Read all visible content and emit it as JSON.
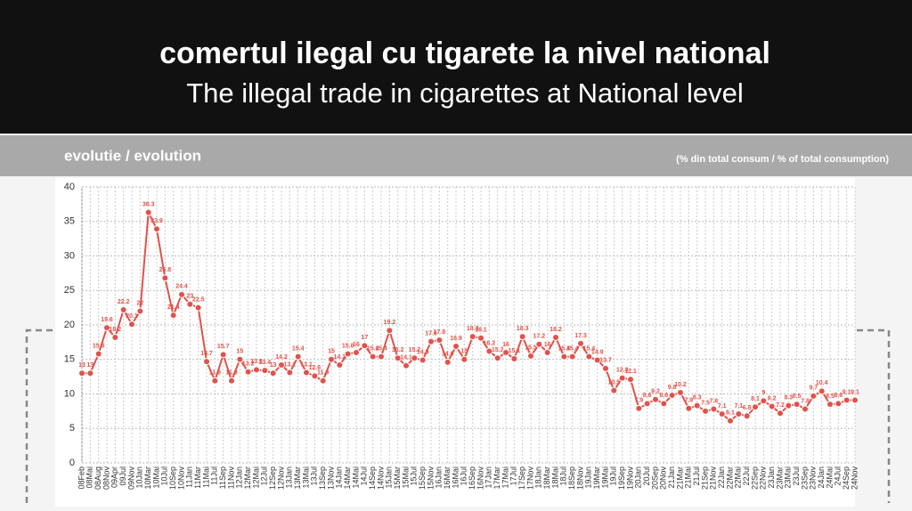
{
  "header": {
    "title": "comertul ilegal cu tigarete la nivel national",
    "subtitle": "The illegal trade in cigarettes at National level"
  },
  "chart_data": {
    "type": "line",
    "title": "evolutie / evolution",
    "unit_note": "(% din total consum / % of total consumption)",
    "color": "#e0524a",
    "grid": true,
    "categories": [
      "08Feb",
      "08Mai",
      "08Aug",
      "08Nov",
      "09Apr",
      "09Jul",
      "09Nov",
      "10Jan",
      "10Mar",
      "10Mai",
      "10Jul",
      "10Sep",
      "10Nov",
      "11Jan",
      "11Mar",
      "11Mai",
      "11Jul",
      "11Sep",
      "11Nov",
      "12Jan",
      "12Mar",
      "12Mai",
      "12Jul",
      "12Sep",
      "12Nov",
      "13Jan",
      "13Mar",
      "13Mai",
      "13Jul",
      "13Sep",
      "13Nov",
      "14Jan",
      "14Mar",
      "14Mai",
      "14Jul",
      "14Sep",
      "14Nov",
      "15Jan",
      "15Mar",
      "15Mai",
      "15Jul",
      "15Sep",
      "15Nov",
      "16Jan",
      "16Mar",
      "16Mai",
      "16Jul",
      "16Sep",
      "16Nov",
      "17Jan",
      "17Mar",
      "17Mai",
      "17Jul",
      "17Sep",
      "17Nov",
      "18Jan",
      "18Mar",
      "18Mai",
      "18Jul",
      "18Sep",
      "18Nov",
      "19Jan",
      "19Mar",
      "19Mai",
      "19Jul",
      "19Sep",
      "19Nov",
      "20Jan",
      "20Jul",
      "20Sep",
      "20Nov",
      "21Jan",
      "21Mar",
      "21Mai",
      "21Jul",
      "21Sep",
      "21Nov",
      "22Jan",
      "22Mar",
      "22Mai",
      "22Jul",
      "22Sep",
      "22Nov",
      "23Jan",
      "23Mar",
      "23Mai",
      "23Jul",
      "23Sep",
      "23Nov",
      "24Jan",
      "24Mai",
      "24Jul",
      "24Sep",
      "24Nov"
    ],
    "values": [
      13,
      13,
      15.8,
      19.6,
      18.2,
      22.2,
      20.1,
      22,
      36.3,
      33.9,
      26.8,
      21.4,
      24.4,
      23,
      22.5,
      14.7,
      11.9,
      15.7,
      11.9,
      15,
      13.2,
      13.5,
      13.4,
      13,
      14.2,
      13.1,
      15.4,
      13.1,
      12.6,
      11.9,
      15,
      14.2,
      15.8,
      16,
      17,
      15.4,
      15.4,
      19.2,
      15.2,
      14.1,
      15.2,
      14.9,
      17.6,
      17.8,
      14.6,
      16.9,
      15,
      18.3,
      18.1,
      16.2,
      15.2,
      16,
      15.1,
      18.3,
      15.5,
      17.2,
      16,
      18.2,
      15.4,
      15.4,
      17.3,
      15.4,
      14.9,
      13.7,
      10.5,
      12.3,
      12.1,
      7.9,
      8.6,
      9.2,
      8.6,
      9.8,
      10.2,
      7.9,
      8.3,
      7.5,
      7.8,
      7.1,
      6.1,
      7.1,
      6.8,
      8.1,
      9,
      8.2,
      7.2,
      8.3,
      8.5,
      7.8,
      9.7,
      10.4,
      8.5,
      8.6,
      9.1,
      9.1
    ],
    "ylim": [
      0,
      40
    ],
    "yticks": [
      0,
      5,
      10,
      15,
      20,
      25,
      30,
      35,
      40
    ]
  }
}
